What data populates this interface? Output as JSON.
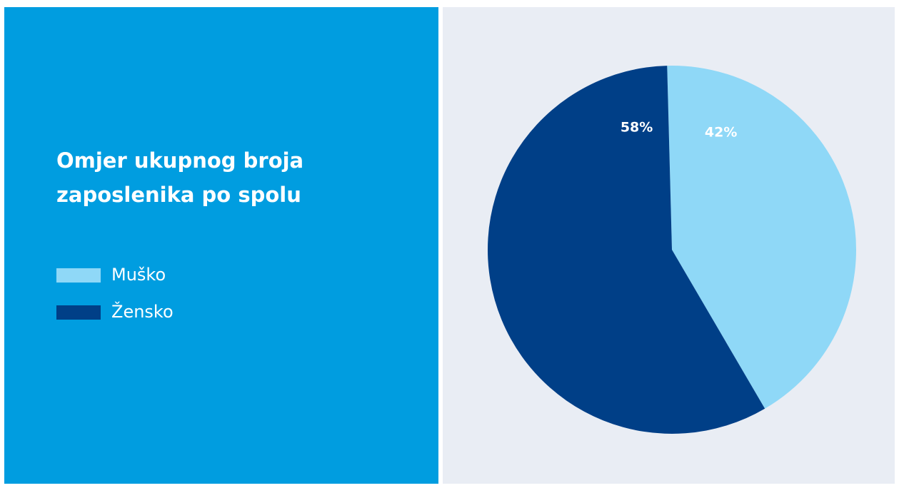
{
  "chart_data": {
    "type": "pie",
    "title": "Omjer ukupnog broja zaposlenika po spolu",
    "legend_placement": "left",
    "categories": [
      "Muško",
      "Žensko"
    ],
    "values": [
      42,
      58
    ],
    "value_labels": [
      "42%",
      "58%"
    ],
    "colors": [
      "#8fd8f7",
      "#003f87"
    ],
    "legend": [
      {
        "label": "Muško",
        "color": "#8fd8f7"
      },
      {
        "label": "Žensko",
        "color": "#003f87"
      }
    ]
  },
  "colors": {
    "left_panel": "#009de0",
    "right_panel": "#e9edf4"
  }
}
